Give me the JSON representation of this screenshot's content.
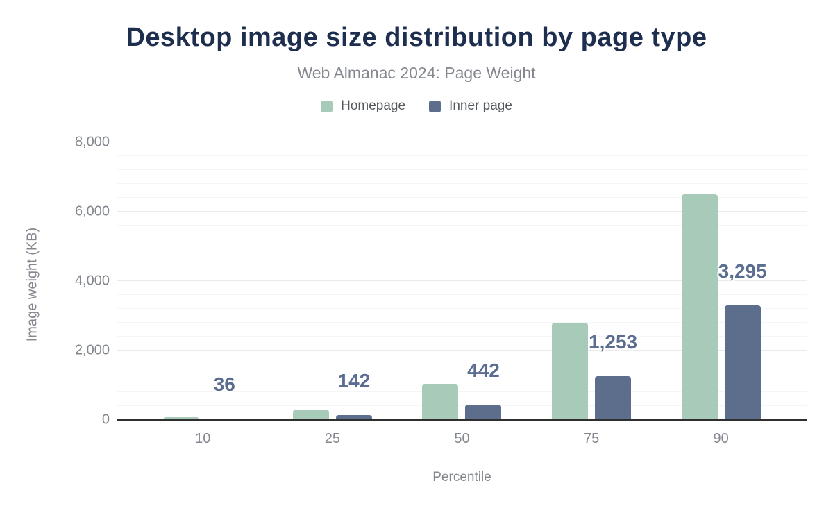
{
  "chart_data": {
    "type": "bar",
    "title": "Desktop image size distribution by page type",
    "subtitle": "Web Almanac 2024: Page Weight",
    "xlabel": "Percentile",
    "ylabel": "Image weight (KB)",
    "categories": [
      "10",
      "25",
      "50",
      "75",
      "90"
    ],
    "series": [
      {
        "name": "Homepage",
        "color": "#a7cbb8",
        "values": [
          90,
          310,
          1050,
          2800,
          6500
        ],
        "labels": [
          "",
          "",
          "",
          "",
          ""
        ]
      },
      {
        "name": "Inner page",
        "color": "#5d6e8d",
        "values": [
          36,
          142,
          442,
          1253,
          3295
        ],
        "labels": [
          "36",
          "142",
          "442",
          "1,253",
          "3,295"
        ]
      }
    ],
    "ylim": [
      0,
      8000
    ],
    "y_ticks": [
      "0",
      "2,000",
      "4,000",
      "6,000",
      "8,000"
    ],
    "y_tick_values": [
      0,
      2000,
      4000,
      6000,
      8000
    ],
    "grid_minor_step": 400,
    "grid_major_step": 2000,
    "grid": "horizontal",
    "legend_position": "top",
    "label_series": "Inner page",
    "colors": {
      "title": "#1e2e4f",
      "subtitle": "#83878e",
      "axis_text": "#83878e",
      "legend_text": "#54585f",
      "value_label": "#5a6c8f",
      "axis_line": "#2f2f2f",
      "grid_major": "#e9eaed",
      "grid_minor": "#f5f5f7",
      "homepage_bar": "#a7cbb8",
      "inner_page_bar": "#5d6e8d",
      "background": "#ffffff"
    }
  }
}
